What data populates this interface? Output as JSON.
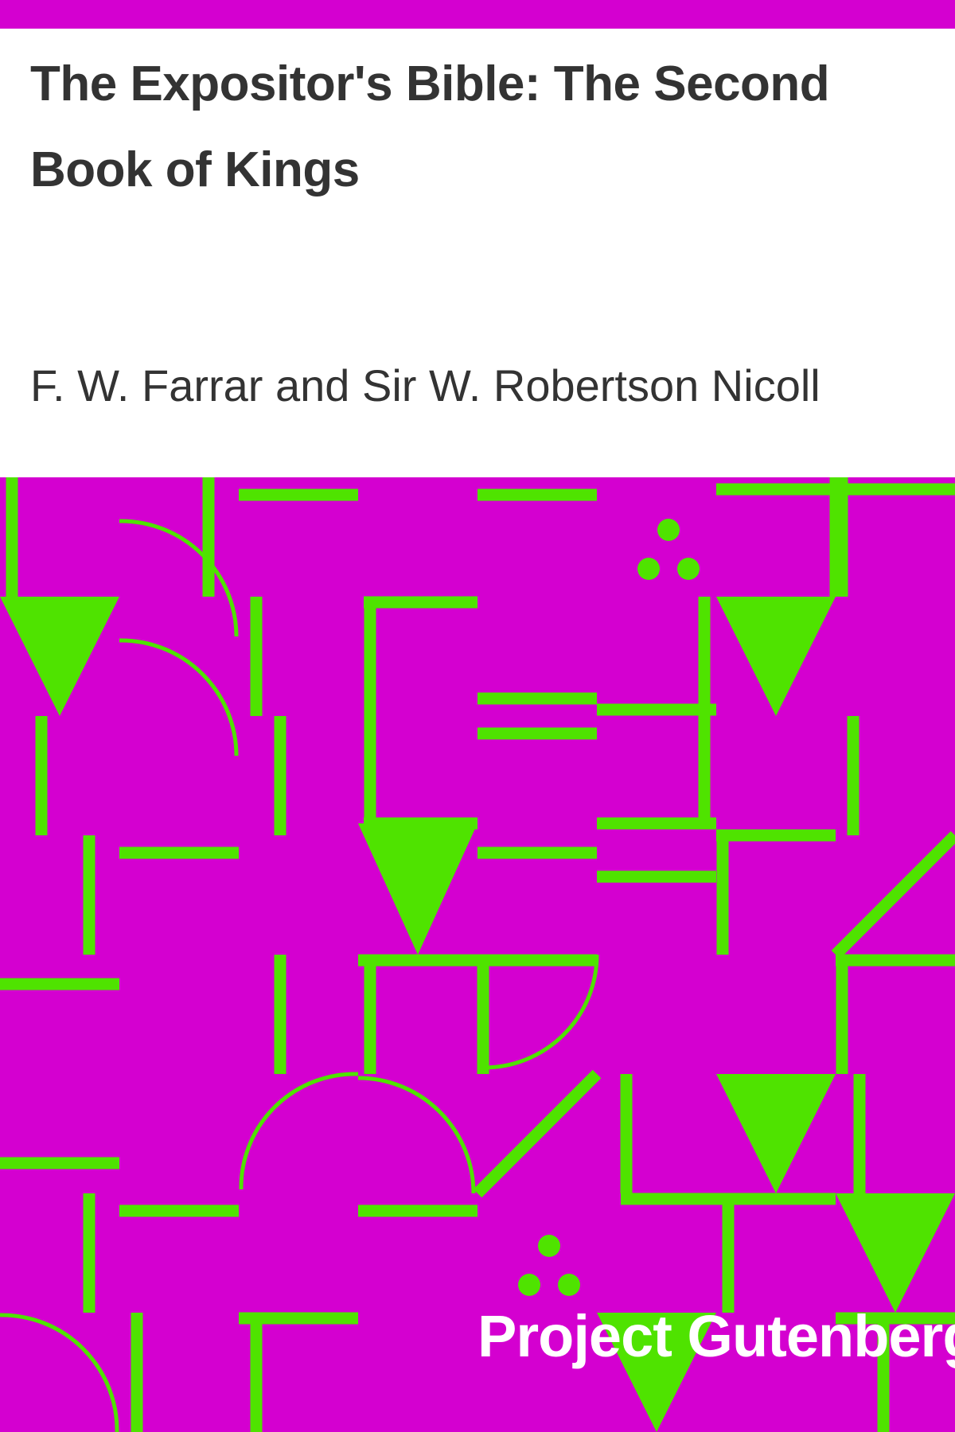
{
  "book": {
    "title": "The Expositor's Bible: The Second Book of Kings",
    "author": "F. W. Farrar and Sir W. Robertson Nicoll",
    "publisher": "Project Gutenberg"
  },
  "colors": {
    "background": "#d400d0",
    "pattern": "#4fe300",
    "title_panel": "#ffffff",
    "title_text": "#333333",
    "publisher_text": "#ffffff"
  },
  "icons": [
    "down-triangle-icon",
    "quarter-arc-icon",
    "three-dots-icon"
  ]
}
